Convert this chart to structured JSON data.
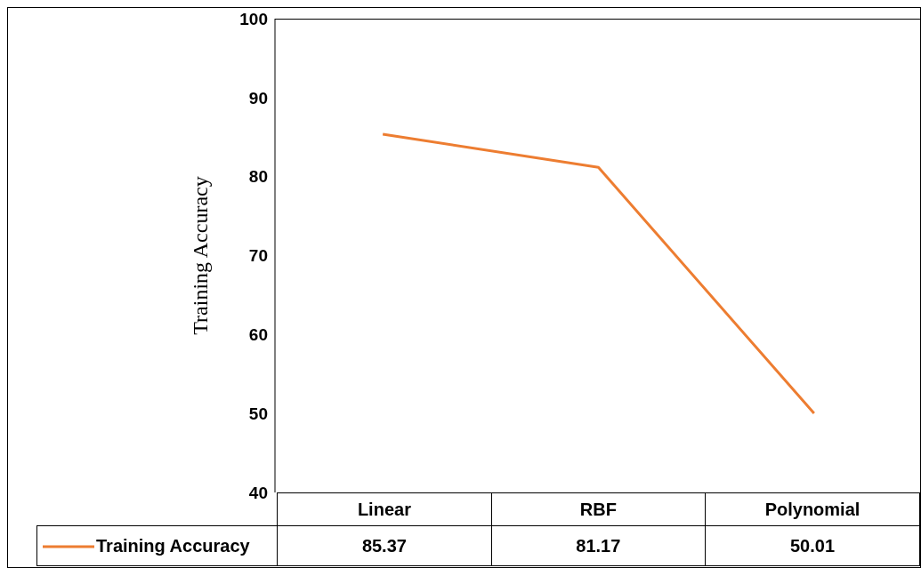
{
  "chart_data": {
    "type": "line",
    "ylabel": "Training Accuracy",
    "categories": [
      "Linear",
      "RBF",
      "Polynomial"
    ],
    "series": [
      {
        "name": "Training Accuracy",
        "color": "#ed7d31",
        "values": [
          85.37,
          81.17,
          50.01
        ]
      }
    ],
    "ylim": [
      40,
      100
    ],
    "yticks": [
      40,
      50,
      60,
      70,
      80,
      90,
      100
    ],
    "legend": "bottom",
    "data_labels": true,
    "marker": "none"
  }
}
